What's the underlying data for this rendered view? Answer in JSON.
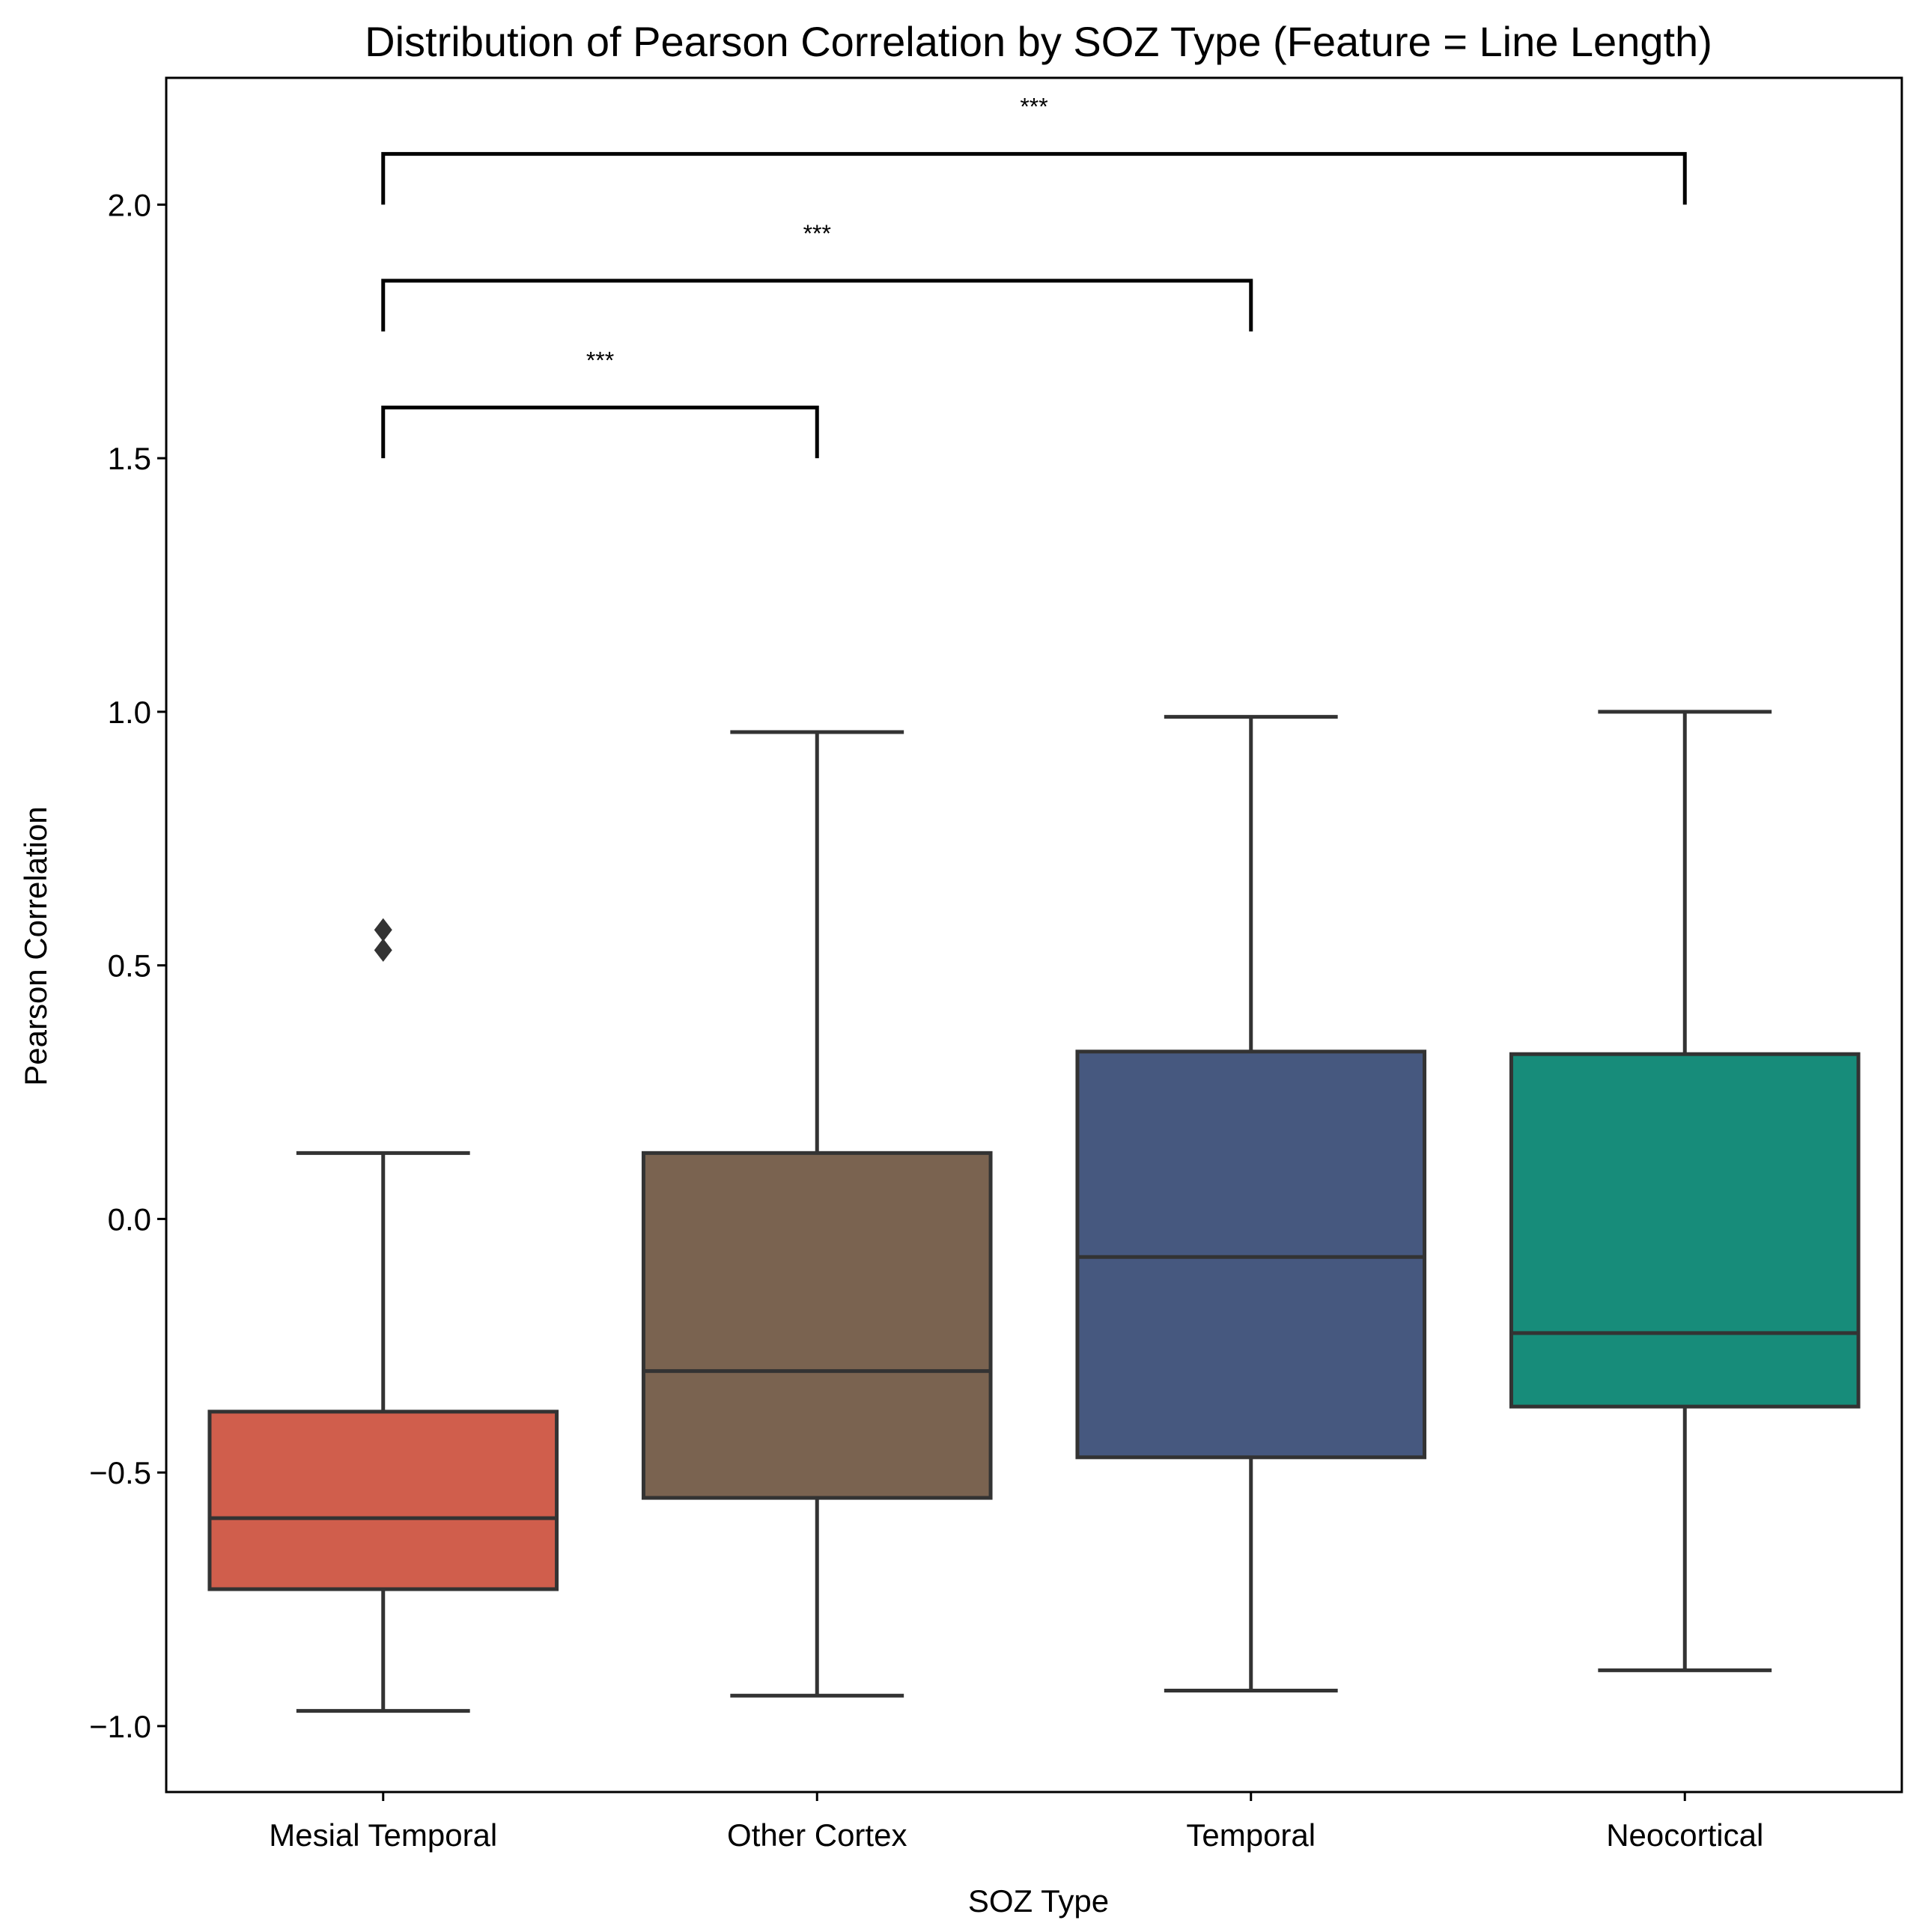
{
  "chart_data": {
    "type": "box",
    "title": "Distribution of Pearson Correlation by SOZ Type (Feature = Line Length)",
    "xlabel": "SOZ Type",
    "ylabel": "Pearson Correlation",
    "ylim": [
      -1.13,
      2.25
    ],
    "yticks": [
      -1.0,
      -0.5,
      0.0,
      0.5,
      1.0,
      1.5,
      2.0
    ],
    "ytick_labels": [
      "−1.0",
      "−0.5",
      "0.0",
      "0.5",
      "1.0",
      "1.5",
      "2.0"
    ],
    "grid": false,
    "categories": [
      "Mesial Temporal",
      "Other Cortex",
      "Temporal",
      "Neocortical"
    ],
    "boxes": [
      {
        "name": "Mesial Temporal",
        "color": "#d05e4c",
        "whisker_low": -0.97,
        "q1": -0.73,
        "median": -0.59,
        "q3": -0.38,
        "whisker_high": 0.13,
        "outliers": [
          0.53,
          0.57
        ]
      },
      {
        "name": "Other Cortex",
        "color": "#7a6350",
        "whisker_low": -0.94,
        "q1": -0.55,
        "median": -0.3,
        "q3": 0.13,
        "whisker_high": 0.96,
        "outliers": []
      },
      {
        "name": "Temporal",
        "color": "#46587f",
        "whisker_low": -0.93,
        "q1": -0.47,
        "median": -0.075,
        "q3": 0.33,
        "whisker_high": 0.99,
        "outliers": []
      },
      {
        "name": "Neocortical",
        "color": "#178c7a",
        "whisker_low": -0.89,
        "q1": -0.37,
        "median": -0.225,
        "q3": 0.325,
        "whisker_high": 1.0,
        "outliers": []
      }
    ],
    "significance": [
      {
        "from": "Mesial Temporal",
        "to": "Other Cortex",
        "bracket_y": 1.6,
        "leg_bottom": 1.5,
        "label": "***"
      },
      {
        "from": "Mesial Temporal",
        "to": "Temporal",
        "bracket_y": 1.85,
        "leg_bottom": 1.75,
        "label": "***"
      },
      {
        "from": "Mesial Temporal",
        "to": "Neocortical",
        "bracket_y": 2.1,
        "leg_bottom": 2.0,
        "label": "***"
      }
    ]
  }
}
